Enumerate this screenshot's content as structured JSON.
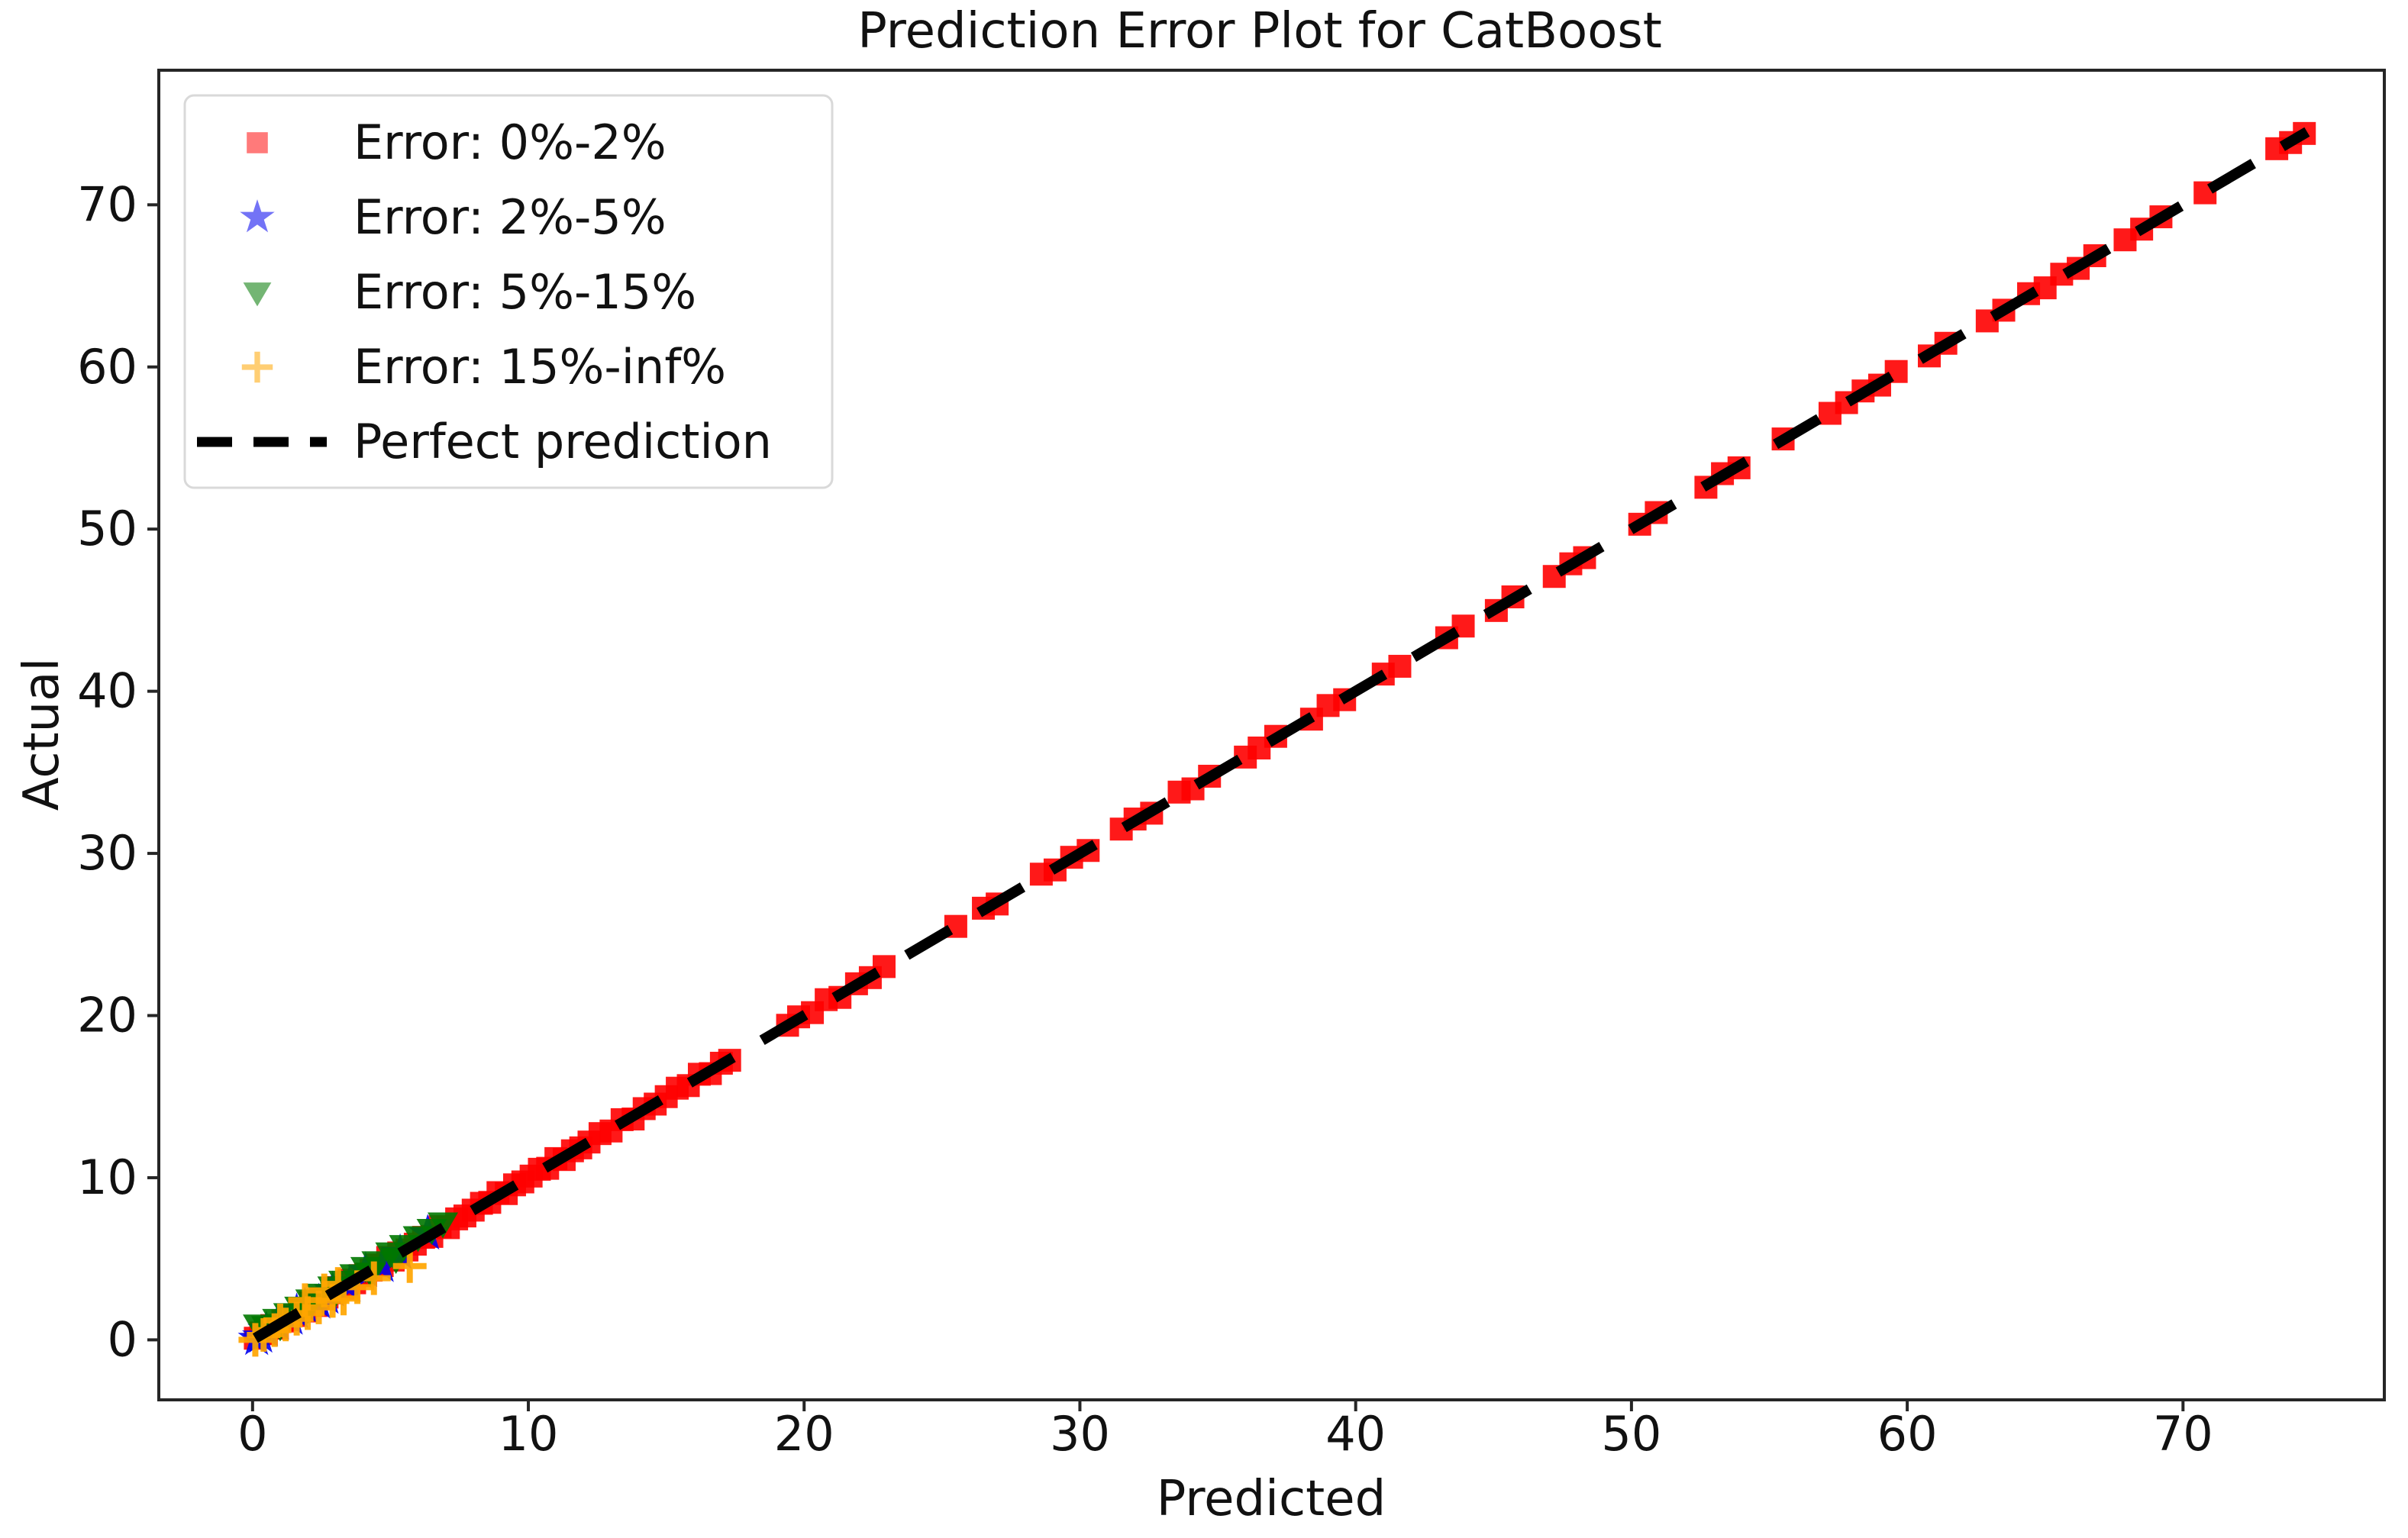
{
  "chart_data": {
    "type": "scatter",
    "title": "Prediction Error Plot for CatBoost",
    "xlabel": "Predicted",
    "ylabel": "Actual",
    "xlim": [
      -3.4,
      77.3
    ],
    "ylim": [
      -3.7,
      78.3
    ],
    "xticks": [
      0,
      10,
      20,
      30,
      40,
      50,
      60,
      70
    ],
    "yticks": [
      0,
      10,
      20,
      30,
      40,
      50,
      60,
      70
    ],
    "grid": false,
    "legend_position": "upper left",
    "colors": {
      "band_0_2": "#ff0000",
      "band_2_5": "#0000ee",
      "band_5_15": "#007800",
      "band_15_inf": "#ffa500",
      "perfect_line": "#000000",
      "spine": "#262626",
      "legend_border": "#d9d9d9"
    },
    "series": [
      {
        "name": "Error: 0%-2%",
        "marker": "square",
        "color": "#ff0000",
        "plot_opacity": 0.9,
        "legend_opacity": 0.52,
        "points": [
          [
            0.1,
            0.1
          ],
          [
            0.3,
            0.42
          ],
          [
            0.5,
            0.38
          ],
          [
            0.7,
            0.88
          ],
          [
            0.9,
            0.72
          ],
          [
            1.1,
            1.16
          ],
          [
            1.3,
            1.24
          ],
          [
            1.5,
            1.5
          ],
          [
            1.7,
            1.82
          ],
          [
            1.9,
            1.78
          ],
          [
            2.1,
            2.28
          ],
          [
            2.3,
            2.12
          ],
          [
            2.5,
            2.56
          ],
          [
            2.7,
            2.64
          ],
          [
            2.9,
            2.9
          ],
          [
            3.1,
            3.22
          ],
          [
            3.3,
            3.18
          ],
          [
            3.5,
            3.68
          ],
          [
            3.7,
            3.52
          ],
          [
            3.9,
            3.96
          ],
          [
            4.1,
            4.04
          ],
          [
            4.3,
            4.3
          ],
          [
            4.5,
            4.62
          ],
          [
            4.7,
            4.58
          ],
          [
            4.9,
            5.08
          ],
          [
            5.1,
            4.92
          ],
          [
            5.3,
            5.36
          ],
          [
            5.6,
            5.54
          ],
          [
            5.9,
            5.9
          ],
          [
            6.2,
            6.32
          ],
          [
            6.5,
            6.38
          ],
          [
            6.8,
            6.98
          ],
          [
            7.1,
            6.92
          ],
          [
            7.4,
            7.46
          ],
          [
            7.7,
            7.64
          ],
          [
            8.0,
            8.0
          ],
          [
            8.3,
            8.42
          ],
          [
            8.6,
            8.48
          ],
          [
            8.9,
            9.08
          ],
          [
            9.2,
            9.02
          ],
          [
            9.5,
            9.56
          ],
          [
            9.8,
            9.74
          ],
          [
            10.1,
            10.1
          ],
          [
            10.4,
            10.52
          ],
          [
            10.7,
            10.58
          ],
          [
            11.0,
            11.18
          ],
          [
            11.3,
            11.12
          ],
          [
            11.6,
            11.66
          ],
          [
            11.9,
            11.84
          ],
          [
            12.2,
            12.2
          ],
          [
            12.6,
            12.72
          ],
          [
            13.0,
            12.88
          ],
          [
            13.4,
            13.58
          ],
          [
            13.8,
            13.62
          ],
          [
            14.2,
            14.26
          ],
          [
            14.6,
            14.54
          ],
          [
            15.0,
            15.0
          ],
          [
            15.4,
            15.52
          ],
          [
            15.8,
            15.68
          ],
          [
            16.2,
            16.38
          ],
          [
            16.6,
            16.42
          ],
          [
            17.0,
            17.06
          ],
          [
            17.3,
            17.24
          ],
          [
            19.4,
            19.4
          ],
          [
            19.8,
            19.92
          ],
          [
            20.3,
            20.18
          ],
          [
            20.8,
            20.98
          ],
          [
            21.3,
            21.12
          ],
          [
            21.9,
            21.96
          ],
          [
            22.4,
            22.34
          ],
          [
            22.9,
            23.02
          ],
          [
            25.5,
            25.5
          ],
          [
            26.5,
            26.62
          ],
          [
            27.0,
            26.88
          ],
          [
            28.6,
            28.72
          ],
          [
            29.1,
            28.98
          ],
          [
            29.7,
            29.76
          ],
          [
            30.3,
            30.18
          ],
          [
            31.5,
            31.5
          ],
          [
            32.0,
            32.12
          ],
          [
            32.6,
            32.48
          ],
          [
            33.6,
            33.78
          ],
          [
            34.1,
            33.98
          ],
          [
            34.7,
            34.76
          ],
          [
            36.0,
            35.94
          ],
          [
            36.5,
            36.5
          ],
          [
            37.1,
            37.22
          ],
          [
            38.4,
            38.28
          ],
          [
            39.0,
            39.12
          ],
          [
            39.6,
            39.48
          ],
          [
            41.0,
            41.06
          ],
          [
            41.6,
            41.54
          ],
          [
            43.3,
            43.3
          ],
          [
            43.9,
            44.02
          ],
          [
            45.1,
            44.98
          ],
          [
            45.7,
            45.82
          ],
          [
            47.2,
            47.08
          ],
          [
            47.8,
            47.86
          ],
          [
            48.3,
            48.24
          ],
          [
            50.3,
            50.3
          ],
          [
            50.9,
            51.02
          ],
          [
            52.7,
            52.58
          ],
          [
            53.3,
            53.42
          ],
          [
            53.9,
            53.78
          ],
          [
            55.5,
            55.56
          ],
          [
            57.2,
            57.14
          ],
          [
            57.8,
            57.8
          ],
          [
            58.4,
            58.52
          ],
          [
            59.0,
            58.88
          ],
          [
            59.6,
            59.72
          ],
          [
            60.8,
            60.68
          ],
          [
            61.4,
            61.46
          ],
          [
            62.9,
            62.84
          ],
          [
            63.5,
            63.5
          ],
          [
            64.4,
            64.52
          ],
          [
            65.0,
            64.88
          ],
          [
            65.6,
            65.72
          ],
          [
            66.2,
            66.08
          ],
          [
            66.8,
            66.86
          ],
          [
            67.9,
            67.84
          ],
          [
            68.5,
            68.5
          ],
          [
            69.2,
            69.26
          ],
          [
            70.8,
            70.74
          ],
          [
            73.4,
            73.46
          ],
          [
            73.9,
            73.84
          ],
          [
            74.4,
            74.4
          ]
        ]
      },
      {
        "name": "Error: 2%-5%",
        "marker": "star",
        "color": "#0000ee",
        "plot_opacity": 0.9,
        "legend_opacity": 0.55,
        "points": [
          [
            0.15,
            0.05
          ],
          [
            0.3,
            0.2
          ],
          [
            0.5,
            0.6
          ],
          [
            0.9,
            1.0
          ],
          [
            1.4,
            1.3
          ],
          [
            1.6,
            1.7
          ],
          [
            1.9,
            2.05
          ],
          [
            2.4,
            2.3
          ],
          [
            2.7,
            2.6
          ],
          [
            2.9,
            3.05
          ],
          [
            3.5,
            3.35
          ],
          [
            4.1,
            4.25
          ],
          [
            4.7,
            4.55
          ],
          [
            5.35,
            5.35
          ],
          [
            6.35,
            6.55
          ]
        ]
      },
      {
        "name": "Error: 5%-15%",
        "marker": "triangle-down",
        "color": "#007800",
        "plot_opacity": 0.9,
        "legend_opacity": 0.55,
        "points": [
          [
            0.2,
            0.9
          ],
          [
            0.5,
            0.8
          ],
          [
            0.9,
            1.25
          ],
          [
            1.3,
            1.6
          ],
          [
            1.7,
            2.0
          ],
          [
            2.1,
            2.45
          ],
          [
            2.5,
            2.8
          ],
          [
            2.9,
            3.25
          ],
          [
            3.3,
            3.6
          ],
          [
            3.7,
            4.0
          ],
          [
            4.1,
            4.45
          ],
          [
            4.5,
            4.8
          ],
          [
            5.0,
            5.35
          ],
          [
            5.5,
            5.8
          ],
          [
            6.0,
            6.35
          ],
          [
            6.5,
            6.8
          ],
          [
            6.9,
            7.2
          ],
          [
            1.0,
            0.85
          ],
          [
            2.0,
            1.9
          ],
          [
            3.0,
            2.9
          ],
          [
            4.3,
            4.1
          ],
          [
            5.2,
            5.0
          ]
        ]
      },
      {
        "name": "Error: 15%-inf%",
        "marker": "plus",
        "color": "#ffa500",
        "plot_opacity": 0.92,
        "legend_opacity": 0.55,
        "points": [
          [
            0.1,
            0.0
          ],
          [
            0.4,
            0.3
          ],
          [
            0.8,
            0.6
          ],
          [
            1.2,
            0.95
          ],
          [
            1.6,
            1.3
          ],
          [
            2.0,
            1.65
          ],
          [
            2.4,
            2.0
          ],
          [
            2.9,
            2.4
          ],
          [
            3.3,
            2.55
          ],
          [
            3.8,
            3.25
          ],
          [
            4.4,
            3.8
          ],
          [
            5.7,
            4.55
          ],
          [
            1.0,
            1.2
          ],
          [
            1.9,
            2.45
          ],
          [
            2.6,
            3.05
          ],
          [
            3.1,
            3.45
          ]
        ]
      }
    ],
    "reference_line": {
      "name": "Perfect prediction",
      "style": "dashed",
      "color": "#000000",
      "from": [
        0.1,
        0.1
      ],
      "to": [
        74.5,
        74.5
      ]
    }
  }
}
